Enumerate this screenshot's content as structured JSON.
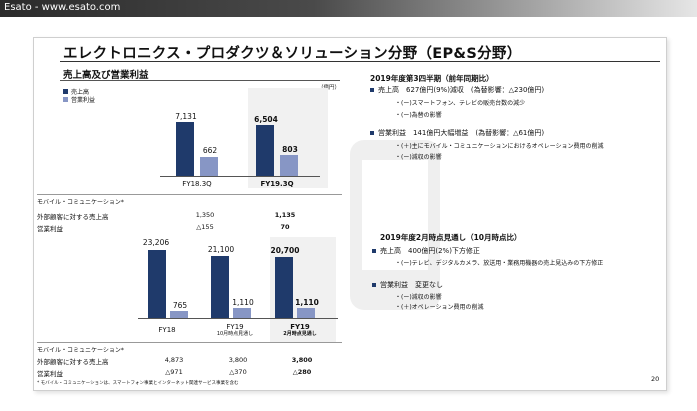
{
  "window": {
    "title": "Esato - www.esato.com"
  },
  "slide": {
    "title": "エレクトロニクス・プロダクツ＆ソリューション分野（EP&S分野）",
    "subtitle": "売上高及び営業利益",
    "legend": {
      "sales": "売上高",
      "op": "営業利益"
    },
    "unit": "（億円）",
    "colors": {
      "sales": "#1f3a6b",
      "op": "#8796c5"
    },
    "chart_top": {
      "type": "bar",
      "categories": [
        "FY18.3Q",
        "FY19.3Q"
      ],
      "series": [
        {
          "name": "売上高",
          "values": [
            7131,
            6504
          ]
        },
        {
          "name": "営業利益",
          "values": [
            662,
            803
          ]
        }
      ],
      "labels": {
        "s0": "7,131",
        "s1": "6,504",
        "o0": "662",
        "o1": "803"
      }
    },
    "table_top": {
      "caption": "モバイル・コミュニケーション*",
      "rows": [
        {
          "label": "外部顧客に対する売上高",
          "v1": "1,350",
          "v2": "1,135"
        },
        {
          "label": "営業利益",
          "v1": "△155",
          "v2": "70"
        }
      ]
    },
    "chart_bottom": {
      "type": "bar",
      "categories": [
        "FY18",
        "FY19",
        "FY19"
      ],
      "cat_sub": [
        "",
        "10月時点見通し",
        "2月時点見通し"
      ],
      "series": [
        {
          "name": "売上高",
          "values": [
            23206,
            21100,
            20700
          ]
        },
        {
          "name": "営業利益",
          "values": [
            765,
            1110,
            1110
          ]
        }
      ],
      "labels": {
        "s0": "23,206",
        "s1": "21,100",
        "s2": "20,700",
        "o0": "765",
        "o1": "1,110",
        "o2": "1,110"
      }
    },
    "table_bottom": {
      "caption": "モバイル・コミュニケーション*",
      "rows": [
        {
          "label": "外部顧客に対する売上高",
          "v1": "4,873",
          "v2": "3,800",
          "v3": "3,800"
        },
        {
          "label": "営業利益",
          "v1": "△971",
          "v2": "△370",
          "v3": "△280"
        }
      ]
    },
    "right1": {
      "title": "2019年度第3四半期（前年同期比）",
      "b1": "売上高　627億円(9%)減収　(為替影響：△230億円)",
      "b1a": "・(ー)スマートフォン、テレビの販売台数の減少",
      "b1b": "・(ー)為替の影響",
      "b2": "営業利益　141億円大幅増益　(為替影響：△61億円)",
      "b2a": "・(＋)主にモバイル・コミュニケーションにおけるオペレーション費用の削減",
      "b2b": "・(ー)減収の影響"
    },
    "right2": {
      "title": "2019年度2月時点見通し（10月時点比）",
      "b1": "売上高　400億円(2%)下方修正",
      "b1a": "・(ー)テレビ、デジタルカメラ、放送用・業務用機器の売上見込みの下方修正",
      "b2": "営業利益　変更なし",
      "b2a": "・(ー)減収の影響",
      "b2b": "・(＋)オペレーション費用の削減"
    },
    "footnote": "* モバイル・コミュニケーションは、スマートフォン事業とインターネット関連サービス事業を含む",
    "page": "20"
  }
}
